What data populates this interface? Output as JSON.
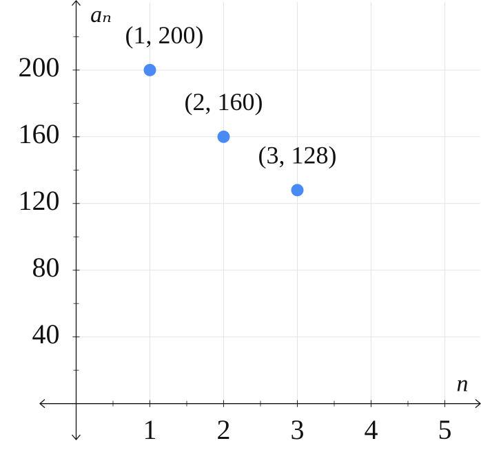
{
  "chart_data": {
    "type": "scatter",
    "xlabel": "n",
    "ylabel": "aₙ",
    "x": [
      1,
      2,
      3
    ],
    "values": [
      200,
      160,
      128
    ],
    "value_labels": [
      "(1, 200)",
      "(2, 160)",
      "(3, 128)"
    ],
    "color": "#4a8af4",
    "xlim": [
      -0.5,
      5.5
    ],
    "ylim": [
      -22,
      242
    ],
    "xticks": [
      1,
      2,
      3,
      4,
      5
    ],
    "yticks": [
      40,
      80,
      120,
      160,
      200
    ],
    "xminorticks": [
      0.5,
      1.5,
      2.5,
      3.5,
      4.5
    ],
    "yminorticks": [
      20,
      60,
      100,
      140,
      180,
      220
    ],
    "grid": true
  }
}
